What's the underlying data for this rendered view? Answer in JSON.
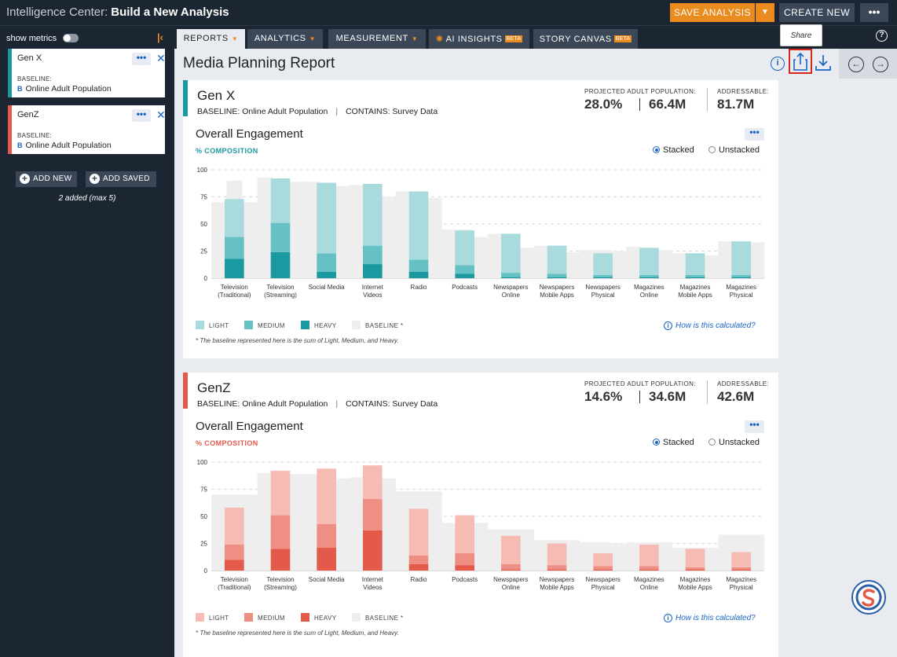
{
  "header": {
    "app_name": "Intelligence Center:",
    "page_name": "Build a New Analysis",
    "save_label": "SAVE ANALYSIS",
    "create_label": "CREATE NEW",
    "more_label": "•••"
  },
  "sidebar": {
    "show_metrics": "show metrics",
    "segments": [
      {
        "name": "Gen X",
        "baseline_label": "BASELINE:",
        "baseline": "Online Adult Population",
        "color": "#1a9aa0"
      },
      {
        "name": "GenZ",
        "baseline_label": "BASELINE:",
        "baseline": "Online Adult Population",
        "color": "#e35a4a"
      }
    ],
    "add_new": "ADD NEW",
    "add_saved": "ADD SAVED",
    "added_note": "2 added (max 5)"
  },
  "tabs": [
    {
      "label": "REPORTS",
      "active": true
    },
    {
      "label": "ANALYTICS"
    },
    {
      "label": "MEASUREMENT"
    },
    {
      "label": "AI INSIGHTS",
      "badge": "BETA"
    },
    {
      "label": "STORY CANVAS",
      "badge": "BETA"
    }
  ],
  "report": {
    "title": "Media Planning Report",
    "tooltip": "Share"
  },
  "cards": [
    {
      "name": "Gen X",
      "baseline": "BASELINE: Online Adult Population",
      "contains": "CONTAINS: Survey Data",
      "proj_label": "PROJECTED ADULT POPULATION:",
      "proj_pct": "28.0%",
      "proj_count": "66.4M",
      "addr_label": "ADDRESSABLE:",
      "addr_value": "81.7M",
      "section_title": "Overall Engagement",
      "composition": "% COMPOSITION",
      "stacked": "Stacked",
      "unstacked": "Unstacked",
      "accent": "#1a9aa0",
      "legend": [
        "LIGHT",
        "MEDIUM",
        "HEAVY",
        "BASELINE *"
      ],
      "how": "How is this calculated?",
      "footnote": "* The baseline represented here is the sum of Light, Medium, and Heavy."
    },
    {
      "name": "GenZ",
      "baseline": "BASELINE: Online Adult Population",
      "contains": "CONTAINS: Survey Data",
      "proj_label": "PROJECTED ADULT POPULATION:",
      "proj_pct": "14.6%",
      "proj_count": "34.6M",
      "addr_label": "ADDRESSABLE:",
      "addr_value": "42.6M",
      "section_title": "Overall Engagement",
      "composition": "% COMPOSITION",
      "stacked": "Stacked",
      "unstacked": "Unstacked",
      "accent": "#e35a4a",
      "legend": [
        "LIGHT",
        "MEDIUM",
        "HEAVY",
        "BASELINE *"
      ],
      "how": "How is this calculated?",
      "footnote": "* The baseline represented here is the sum of Light, Medium, and Heavy."
    }
  ],
  "chart_data": [
    {
      "type": "bar",
      "stacked": true,
      "categories": [
        [
          "Television",
          "(Traditional)"
        ],
        [
          "Television",
          "(Streaming)"
        ],
        [
          "Social Media"
        ],
        [
          "Internet",
          "Videos"
        ],
        [
          "Radio"
        ],
        [
          "Podcasts"
        ],
        [
          "Newspapers",
          "Online"
        ],
        [
          "Newspapers",
          "Mobile Apps"
        ],
        [
          "Newspapers",
          "Physical"
        ],
        [
          "Magazines",
          "Online"
        ],
        [
          "Magazines",
          "Mobile Apps"
        ],
        [
          "Magazines",
          "Physical"
        ]
      ],
      "ylim": [
        0,
        100
      ],
      "yticks": [
        0,
        25,
        50,
        75,
        100
      ],
      "series": [
        {
          "name": "HEAVY",
          "color": "#1a9aa0",
          "values": [
            18,
            24,
            6,
            13,
            6,
            4,
            1,
            1,
            1,
            1,
            1,
            1
          ]
        },
        {
          "name": "MEDIUM",
          "color": "#66c1c4",
          "values": [
            20,
            27,
            17,
            17,
            11,
            8,
            4,
            3,
            2,
            2,
            2,
            2
          ]
        },
        {
          "name": "LIGHT",
          "color": "#a9dadc",
          "values": [
            35,
            41,
            65,
            57,
            63,
            32,
            36,
            26,
            20,
            25,
            20,
            31
          ]
        }
      ],
      "baseline": {
        "name": "BASELINE *",
        "color": "#eeeeee",
        "values": [
          [
            70,
            90,
            70
          ],
          [
            93,
            90,
            89
          ],
          [
            89,
            88,
            85
          ],
          [
            86,
            85,
            75
          ],
          [
            80,
            74,
            74
          ],
          [
            45,
            45,
            38
          ],
          [
            41,
            40,
            28
          ],
          [
            30,
            29,
            24
          ],
          [
            26,
            26,
            25
          ],
          [
            29,
            28,
            26
          ],
          [
            23,
            23,
            21
          ],
          [
            34,
            33,
            33
          ]
        ]
      }
    },
    {
      "type": "bar",
      "stacked": true,
      "categories": [
        [
          "Television",
          "(Traditional)"
        ],
        [
          "Television",
          "(Streaming)"
        ],
        [
          "Social Media"
        ],
        [
          "Internet",
          "Videos"
        ],
        [
          "Radio"
        ],
        [
          "Podcasts"
        ],
        [
          "Newspapers",
          "Online"
        ],
        [
          "Newspapers",
          "Mobile Apps"
        ],
        [
          "Newspapers",
          "Physical"
        ],
        [
          "Magazines",
          "Online"
        ],
        [
          "Magazines",
          "Mobile Apps"
        ],
        [
          "Magazines",
          "Physical"
        ]
      ],
      "ylim": [
        0,
        100
      ],
      "yticks": [
        0,
        25,
        50,
        75,
        100
      ],
      "series": [
        {
          "name": "HEAVY",
          "color": "#e35a4a",
          "values": [
            10,
            20,
            21,
            37,
            6,
            5,
            1,
            1,
            1,
            1,
            1,
            1
          ]
        },
        {
          "name": "MEDIUM",
          "color": "#ef8f83",
          "values": [
            14,
            31,
            22,
            29,
            8,
            11,
            5,
            4,
            3,
            3,
            2,
            2
          ]
        },
        {
          "name": "LIGHT",
          "color": "#f6bcb4",
          "values": [
            34,
            41,
            51,
            31,
            43,
            35,
            26,
            20,
            12,
            20,
            17,
            14
          ]
        }
      ],
      "baseline": {
        "name": "BASELINE *",
        "color": "#eeeeee",
        "values": [
          [
            70,
            70,
            70
          ],
          [
            90,
            90,
            89
          ],
          [
            89,
            88,
            85
          ],
          [
            86,
            85,
            85
          ],
          [
            73,
            73,
            73
          ],
          [
            44,
            44,
            44
          ],
          [
            38,
            38,
            38
          ],
          [
            28,
            28,
            28
          ],
          [
            26,
            26,
            25
          ],
          [
            26,
            26,
            26
          ],
          [
            21,
            21,
            21
          ],
          [
            33,
            33,
            33
          ]
        ]
      }
    }
  ]
}
